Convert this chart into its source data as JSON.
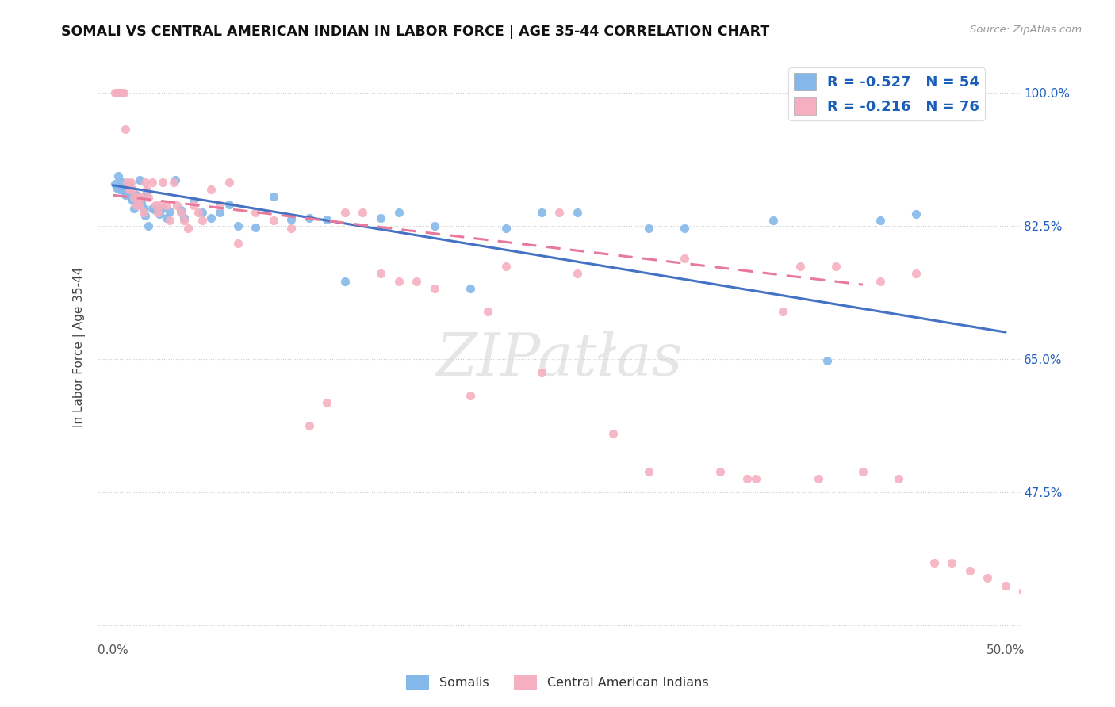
{
  "title": "SOMALI VS CENTRAL AMERICAN INDIAN IN LABOR FORCE | AGE 35-44 CORRELATION CHART",
  "source": "Source: ZipAtlas.com",
  "ylabel": "In Labor Force | Age 35-44",
  "xlim": [
    0.0,
    0.5
  ],
  "ylim": [
    0.28,
    1.05
  ],
  "ytick_positions": [
    1.0,
    0.825,
    0.65,
    0.475,
    0.3
  ],
  "ytick_labels": [
    "100.0%",
    "82.5%",
    "65.0%",
    "47.5%",
    ""
  ],
  "xtick_positions": [
    0.0,
    0.1,
    0.2,
    0.3,
    0.4,
    0.5
  ],
  "xtick_labels": [
    "0.0%",
    "",
    "",
    "",
    "",
    "50.0%"
  ],
  "somali_color": "#85b8ea",
  "central_color": "#f5afc0",
  "somali_R": -0.527,
  "somali_N": 54,
  "central_R": -0.216,
  "central_N": 76,
  "somali_line_color": "#4472c4",
  "central_line_color": "#e8799a",
  "somali_x": [
    0.001,
    0.002,
    0.003,
    0.004,
    0.005,
    0.006,
    0.007,
    0.008,
    0.009,
    0.01,
    0.011,
    0.012,
    0.013,
    0.014,
    0.015,
    0.016,
    0.017,
    0.018,
    0.019,
    0.02,
    0.022,
    0.024,
    0.026,
    0.028,
    0.03,
    0.032,
    0.035,
    0.038,
    0.04,
    0.045,
    0.05,
    0.055,
    0.06,
    0.065,
    0.07,
    0.08,
    0.09,
    0.1,
    0.11,
    0.12,
    0.13,
    0.15,
    0.16,
    0.18,
    0.2,
    0.22,
    0.24,
    0.26,
    0.3,
    0.32,
    0.37,
    0.4,
    0.43,
    0.45
  ],
  "somali_y": [
    0.88,
    0.875,
    0.89,
    0.872,
    0.882,
    0.87,
    0.865,
    0.872,
    0.878,
    0.862,
    0.858,
    0.848,
    0.865,
    0.855,
    0.885,
    0.855,
    0.848,
    0.838,
    0.868,
    0.825,
    0.848,
    0.845,
    0.84,
    0.848,
    0.835,
    0.843,
    0.885,
    0.845,
    0.835,
    0.858,
    0.842,
    0.835,
    0.842,
    0.853,
    0.825,
    0.823,
    0.863,
    0.833,
    0.835,
    0.833,
    0.752,
    0.835,
    0.842,
    0.825,
    0.742,
    0.822,
    0.842,
    0.842,
    0.822,
    0.822,
    0.832,
    0.648,
    0.832,
    0.84
  ],
  "central_x": [
    0.001,
    0.002,
    0.003,
    0.004,
    0.005,
    0.006,
    0.007,
    0.008,
    0.009,
    0.01,
    0.011,
    0.012,
    0.013,
    0.014,
    0.015,
    0.016,
    0.017,
    0.018,
    0.019,
    0.02,
    0.022,
    0.024,
    0.025,
    0.026,
    0.028,
    0.03,
    0.032,
    0.034,
    0.036,
    0.038,
    0.04,
    0.042,
    0.045,
    0.048,
    0.05,
    0.055,
    0.06,
    0.065,
    0.07,
    0.08,
    0.09,
    0.1,
    0.11,
    0.12,
    0.13,
    0.14,
    0.15,
    0.16,
    0.17,
    0.18,
    0.2,
    0.21,
    0.22,
    0.24,
    0.25,
    0.26,
    0.28,
    0.3,
    0.32,
    0.34,
    0.355,
    0.36,
    0.375,
    0.385,
    0.395,
    0.405,
    0.42,
    0.43,
    0.44,
    0.45,
    0.46,
    0.47,
    0.48,
    0.49,
    0.5,
    0.51
  ],
  "central_y": [
    1.0,
    1.0,
    1.0,
    1.0,
    1.0,
    1.0,
    0.952,
    0.882,
    0.872,
    0.882,
    0.872,
    0.862,
    0.852,
    0.862,
    0.852,
    0.862,
    0.842,
    0.882,
    0.872,
    0.862,
    0.882,
    0.852,
    0.842,
    0.852,
    0.882,
    0.852,
    0.832,
    0.882,
    0.852,
    0.842,
    0.832,
    0.822,
    0.852,
    0.842,
    0.832,
    0.872,
    0.852,
    0.882,
    0.802,
    0.842,
    0.832,
    0.822,
    0.562,
    0.592,
    0.842,
    0.842,
    0.762,
    0.752,
    0.752,
    0.742,
    0.602,
    0.712,
    0.772,
    0.632,
    0.842,
    0.762,
    0.552,
    0.502,
    0.782,
    0.502,
    0.492,
    0.492,
    0.712,
    0.772,
    0.492,
    0.772,
    0.502,
    0.752,
    0.492,
    0.762,
    0.382,
    0.382,
    0.372,
    0.362,
    0.352,
    0.345
  ]
}
